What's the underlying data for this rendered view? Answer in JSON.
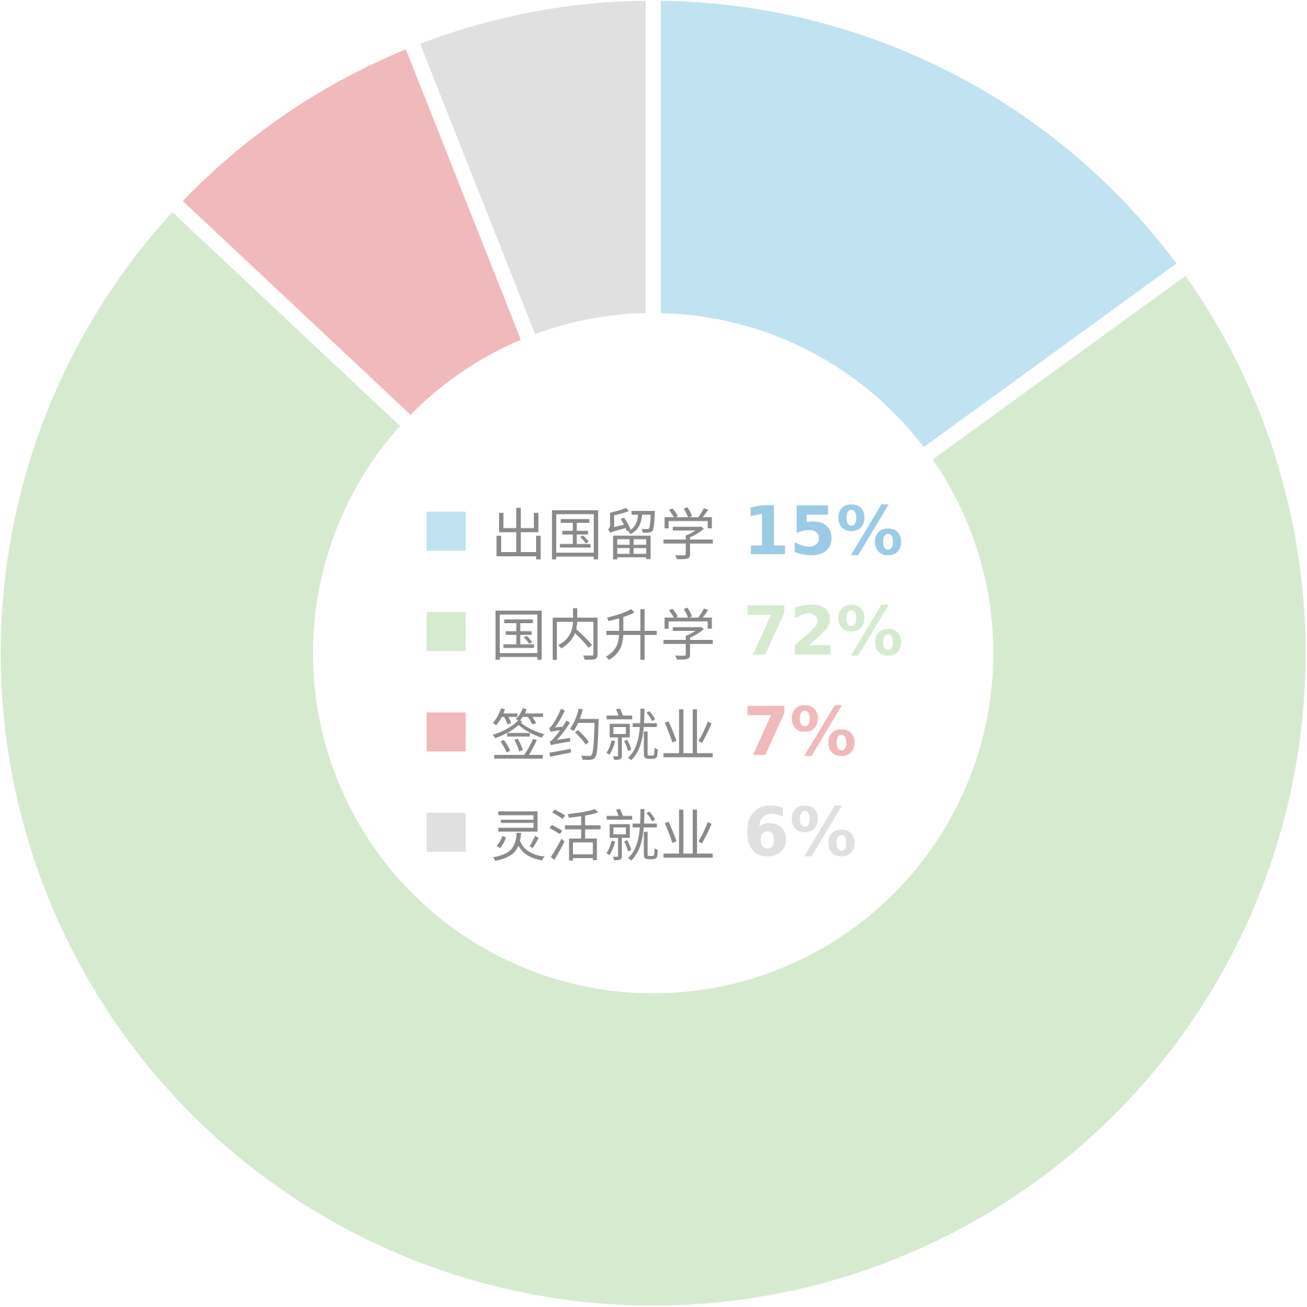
{
  "chart_data": {
    "type": "pie",
    "donut": true,
    "title": "",
    "legend_position": "center",
    "slices": [
      {
        "label": "出国留学",
        "value": 15,
        "value_label": "15%",
        "color": "#c1e2f1",
        "text_color": "#9ccbe6"
      },
      {
        "label": "国内升学",
        "value": 72,
        "value_label": "72%",
        "color": "#d6ead0",
        "text_color": "#d6ead0"
      },
      {
        "label": "签约就业",
        "value": 7,
        "value_label": "7%",
        "color": "#f0b9bb",
        "text_color": "#f0b9bb"
      },
      {
        "label": "灵活就业",
        "value": 6,
        "value_label": "6%",
        "color": "#e0e0e0",
        "text_color": "#e0e0e0"
      }
    ]
  },
  "legend": {
    "items": [
      {
        "label": "出国留学",
        "value": "15%"
      },
      {
        "label": "国内升学",
        "value": "72%"
      },
      {
        "label": "签约就业",
        "value": "7%"
      },
      {
        "label": "灵活就业",
        "value": "6%"
      }
    ]
  }
}
